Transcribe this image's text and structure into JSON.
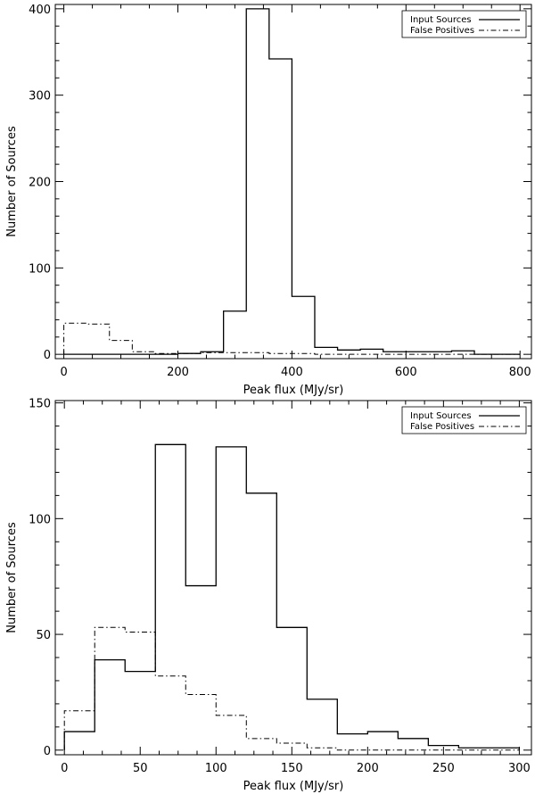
{
  "chart_data": [
    {
      "type": "histogram",
      "xlabel": "Peak flux (MJy/sr)",
      "ylabel": "Number of Sources",
      "xlim": [
        -15,
        820
      ],
      "ylim": [
        -5,
        405
      ],
      "xticks": [
        0,
        200,
        400,
        600,
        800
      ],
      "yticks": [
        0,
        100,
        200,
        300,
        400
      ],
      "xtick_labels": [
        "0",
        "200",
        "400",
        "600",
        "800"
      ],
      "ytick_labels": [
        "0",
        "100",
        "200",
        "300",
        "400"
      ],
      "bin_edges": [
        0,
        40,
        80,
        120,
        160,
        200,
        240,
        280,
        320,
        360,
        400,
        440,
        480,
        520,
        560,
        600,
        640,
        680,
        720,
        760,
        800
      ],
      "legend_position": "top-right",
      "series": [
        {
          "name": "Input Sources",
          "style": "solid",
          "values": [
            0,
            0,
            0,
            0,
            0,
            1,
            3,
            50,
            400,
            342,
            67,
            8,
            5,
            6,
            3,
            3,
            3,
            4,
            0,
            0
          ]
        },
        {
          "name": "False Positives",
          "style": "dashdot",
          "values": [
            36,
            35,
            16,
            3,
            1,
            1,
            2,
            2,
            2,
            1,
            1,
            0,
            0,
            0,
            0,
            0,
            0,
            0,
            0,
            0
          ]
        }
      ]
    },
    {
      "type": "histogram",
      "xlabel": "Peak flux (MJy/sr)",
      "ylabel": "Number of Sources",
      "xlim": [
        -6,
        308
      ],
      "ylim": [
        -2,
        151
      ],
      "xticks": [
        0,
        50,
        100,
        150,
        200,
        250,
        300
      ],
      "yticks": [
        0,
        50,
        100,
        150
      ],
      "xtick_labels": [
        "0",
        "50",
        "100",
        "150",
        "200",
        "250",
        "300"
      ],
      "ytick_labels": [
        "0",
        "50",
        "100",
        "150"
      ],
      "bin_edges": [
        0,
        20,
        40,
        60,
        80,
        100,
        120,
        140,
        160,
        180,
        200,
        220,
        240,
        260,
        280,
        300
      ],
      "legend_position": "top-right",
      "series": [
        {
          "name": "Input Sources",
          "style": "solid",
          "values": [
            8,
            39,
            34,
            132,
            71,
            131,
            111,
            53,
            22,
            7,
            8,
            5,
            2,
            1,
            1
          ]
        },
        {
          "name": "False Positives",
          "style": "dashdot",
          "values": [
            17,
            53,
            51,
            32,
            24,
            15,
            5,
            3,
            1,
            0,
            0,
            0,
            0,
            0,
            0
          ]
        }
      ]
    }
  ]
}
